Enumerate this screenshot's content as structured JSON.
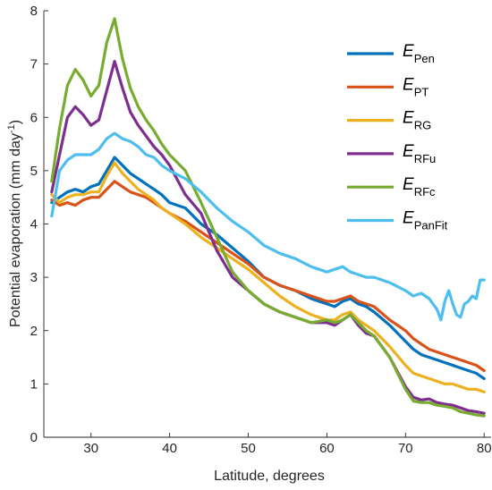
{
  "chart_data": {
    "type": "line",
    "xlabel": "Latitude, degrees",
    "ylabel": "Potential evaporation (mm day",
    "ylabel_sup": "-1",
    "ylabel_suffix": ")",
    "xlim": [
      24,
      81
    ],
    "ylim": [
      0,
      8
    ],
    "xticks": [
      30,
      40,
      50,
      60,
      70,
      80
    ],
    "yticks": [
      0,
      1,
      2,
      3,
      4,
      5,
      6,
      7,
      8
    ],
    "grid": false,
    "legend_position": "top-right",
    "series": [
      {
        "name": "E",
        "sub": "Pen",
        "color": "#0072BD",
        "x": [
          25,
          26,
          27,
          28,
          29,
          30,
          31,
          32,
          33,
          34,
          35,
          36,
          37,
          38,
          39,
          40,
          42,
          44,
          46,
          48,
          50,
          52,
          54,
          56,
          58,
          60,
          61,
          62,
          63,
          64,
          65,
          66,
          68,
          70,
          71,
          72,
          73,
          74,
          75,
          76,
          77,
          78,
          79,
          80
        ],
        "y": [
          4.4,
          4.5,
          4.6,
          4.65,
          4.6,
          4.7,
          4.75,
          5.0,
          5.25,
          5.1,
          4.95,
          4.85,
          4.75,
          4.65,
          4.55,
          4.4,
          4.3,
          4.0,
          3.8,
          3.55,
          3.3,
          3.0,
          2.85,
          2.75,
          2.6,
          2.5,
          2.45,
          2.55,
          2.6,
          2.5,
          2.45,
          2.35,
          2.1,
          1.8,
          1.65,
          1.55,
          1.5,
          1.45,
          1.4,
          1.35,
          1.3,
          1.25,
          1.2,
          1.1
        ]
      },
      {
        "name": "E",
        "sub": "PT",
        "color": "#D95319",
        "x": [
          25,
          26,
          27,
          28,
          29,
          30,
          31,
          32,
          33,
          34,
          35,
          36,
          37,
          38,
          39,
          40,
          42,
          44,
          46,
          48,
          50,
          52,
          54,
          56,
          58,
          60,
          61,
          62,
          63,
          64,
          65,
          66,
          68,
          70,
          71,
          72,
          73,
          74,
          75,
          76,
          77,
          78,
          79,
          80
        ],
        "y": [
          4.45,
          4.35,
          4.4,
          4.35,
          4.45,
          4.5,
          4.5,
          4.65,
          4.8,
          4.7,
          4.6,
          4.55,
          4.5,
          4.4,
          4.3,
          4.2,
          4.05,
          3.85,
          3.65,
          3.45,
          3.25,
          3.0,
          2.85,
          2.75,
          2.65,
          2.55,
          2.55,
          2.6,
          2.65,
          2.55,
          2.5,
          2.45,
          2.2,
          2.0,
          1.85,
          1.75,
          1.65,
          1.6,
          1.55,
          1.5,
          1.45,
          1.4,
          1.35,
          1.25
        ]
      },
      {
        "name": "E",
        "sub": "RG",
        "color": "#EDB120",
        "x": [
          25,
          26,
          27,
          28,
          29,
          30,
          31,
          32,
          33,
          34,
          35,
          36,
          37,
          38,
          39,
          40,
          42,
          44,
          46,
          48,
          50,
          52,
          54,
          56,
          58,
          60,
          61,
          62,
          63,
          64,
          65,
          66,
          68,
          70,
          71,
          72,
          73,
          74,
          75,
          76,
          77,
          78,
          79,
          80
        ],
        "y": [
          4.55,
          4.4,
          4.5,
          4.55,
          4.55,
          4.6,
          4.6,
          4.9,
          5.15,
          4.95,
          4.8,
          4.65,
          4.55,
          4.45,
          4.3,
          4.2,
          4.0,
          3.75,
          3.55,
          3.35,
          3.15,
          2.9,
          2.65,
          2.45,
          2.3,
          2.2,
          2.2,
          2.3,
          2.35,
          2.2,
          2.1,
          2.0,
          1.7,
          1.35,
          1.2,
          1.15,
          1.1,
          1.05,
          1.0,
          1.0,
          0.95,
          0.9,
          0.9,
          0.85
        ]
      },
      {
        "name": "E",
        "sub": "RFu",
        "color": "#7E2F8E",
        "x": [
          25,
          26,
          27,
          28,
          29,
          30,
          31,
          32,
          33,
          34,
          35,
          36,
          37,
          38,
          39,
          40,
          42,
          44,
          46,
          48,
          50,
          52,
          54,
          56,
          58,
          60,
          61,
          62,
          63,
          64,
          65,
          66,
          68,
          70,
          71,
          72,
          73,
          74,
          75,
          76,
          77,
          78,
          79,
          80
        ],
        "y": [
          4.6,
          5.3,
          6.0,
          6.2,
          6.05,
          5.85,
          5.95,
          6.5,
          7.05,
          6.55,
          6.1,
          5.85,
          5.65,
          5.45,
          5.3,
          5.1,
          4.55,
          4.2,
          3.5,
          3.0,
          2.75,
          2.5,
          2.35,
          2.25,
          2.15,
          2.15,
          2.1,
          2.2,
          2.3,
          2.1,
          1.95,
          1.9,
          1.5,
          0.95,
          0.75,
          0.7,
          0.72,
          0.65,
          0.62,
          0.6,
          0.55,
          0.5,
          0.48,
          0.45
        ]
      },
      {
        "name": "E",
        "sub": "RFc",
        "color": "#77AC30",
        "x": [
          25,
          26,
          27,
          28,
          29,
          30,
          31,
          32,
          33,
          34,
          35,
          36,
          37,
          38,
          39,
          40,
          42,
          44,
          46,
          48,
          50,
          52,
          54,
          56,
          58,
          60,
          61,
          62,
          63,
          64,
          65,
          66,
          68,
          70,
          71,
          72,
          73,
          74,
          75,
          76,
          77,
          78,
          79,
          80
        ],
        "y": [
          4.8,
          5.8,
          6.6,
          6.9,
          6.7,
          6.4,
          6.6,
          7.4,
          7.85,
          7.1,
          6.55,
          6.2,
          5.95,
          5.75,
          5.5,
          5.3,
          5.0,
          4.4,
          3.75,
          3.1,
          2.75,
          2.5,
          2.35,
          2.25,
          2.15,
          2.2,
          2.15,
          2.2,
          2.3,
          2.15,
          2.0,
          1.9,
          1.5,
          0.9,
          0.68,
          0.65,
          0.65,
          0.6,
          0.58,
          0.55,
          0.48,
          0.45,
          0.42,
          0.4
        ]
      },
      {
        "name": "E",
        "sub": "PanFit",
        "color": "#4DBEEE",
        "x": [
          25,
          26,
          27,
          28,
          29,
          30,
          31,
          32,
          33,
          34,
          35,
          36,
          37,
          38,
          39,
          40,
          42,
          44,
          46,
          48,
          50,
          52,
          54,
          56,
          58,
          60,
          61,
          62,
          63,
          64,
          65,
          66,
          68,
          70,
          71,
          72,
          73,
          74,
          74.5,
          75,
          75.5,
          76,
          76.5,
          77,
          77.5,
          78,
          78.5,
          79,
          79.5,
          80
        ],
        "y": [
          4.15,
          5.0,
          5.2,
          5.3,
          5.3,
          5.3,
          5.4,
          5.6,
          5.7,
          5.6,
          5.55,
          5.45,
          5.3,
          5.25,
          5.1,
          5.0,
          4.85,
          4.6,
          4.3,
          4.05,
          3.85,
          3.6,
          3.45,
          3.35,
          3.2,
          3.1,
          3.15,
          3.2,
          3.1,
          3.05,
          3.0,
          3.0,
          2.9,
          2.75,
          2.65,
          2.7,
          2.6,
          2.4,
          2.2,
          2.55,
          2.75,
          2.5,
          2.3,
          2.25,
          2.5,
          2.55,
          2.65,
          2.6,
          2.95,
          2.95
        ]
      }
    ]
  }
}
